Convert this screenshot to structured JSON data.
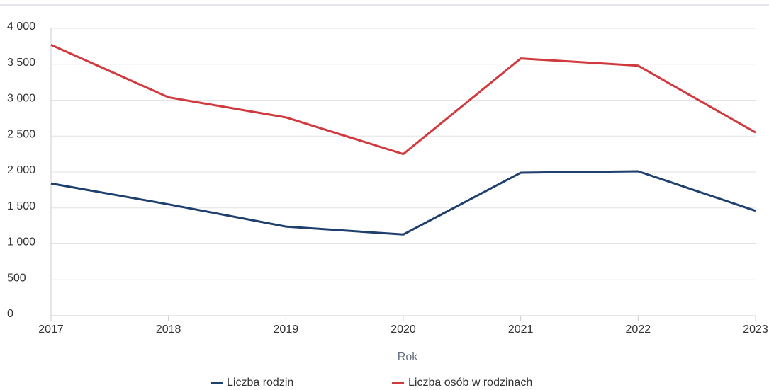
{
  "chart_data": {
    "type": "line",
    "x": [
      2017,
      2018,
      2019,
      2020,
      2021,
      2022,
      2023
    ],
    "xlim": [
      2017,
      2023
    ],
    "xticks": [
      2017,
      2018,
      2019,
      2020,
      2021,
      2022,
      2023
    ],
    "ylim": [
      0,
      4000
    ],
    "yticks": [
      0,
      500,
      {
        "value": 1000,
        "label": "1 000"
      },
      {
        "value": 1500,
        "label": "1 500"
      },
      {
        "value": 2000,
        "label": "2 000"
      },
      {
        "value": 2500,
        "label": "2 500"
      },
      {
        "value": 3000,
        "label": "3 000"
      },
      {
        "value": 3500,
        "label": "3 500"
      },
      {
        "value": 4000,
        "label": "4 000"
      }
    ],
    "xlabel": "Rok",
    "grid": true,
    "legend": "bottom",
    "series": [
      {
        "name": "Liczba rodzin",
        "color": "#1f3f6e",
        "values": [
          1840,
          1550,
          1240,
          1130,
          1990,
          2010,
          1460
        ]
      },
      {
        "name": "Liczba osób w rodzinach",
        "color": "#d0393d",
        "values": [
          3770,
          3040,
          2760,
          2250,
          3580,
          3480,
          2550
        ]
      }
    ]
  }
}
